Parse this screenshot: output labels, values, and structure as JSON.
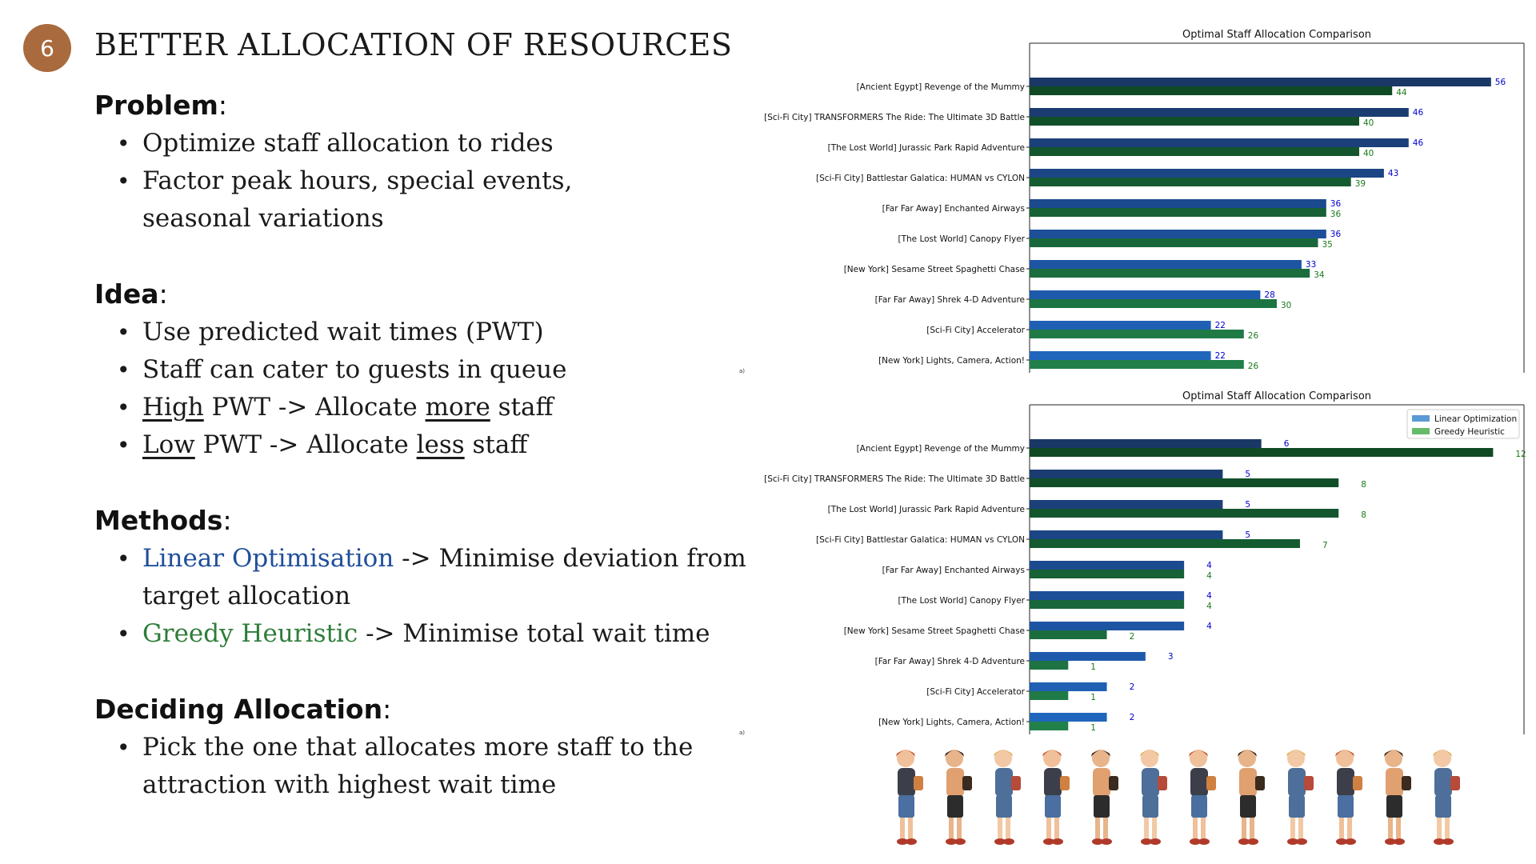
{
  "slide": {
    "number": "6",
    "title": "BETTER ALLOCATION OF RESOURCES"
  },
  "sections": {
    "problem": {
      "heading": "Problem",
      "colon": ":",
      "bullet1": "Optimize staff allocation to rides",
      "bullet2": "Factor peak hours, special events, seasonal variations"
    },
    "idea": {
      "heading": "Idea",
      "colon": ":",
      "bullet1": "Use predicted wait times (PWT)",
      "bullet2": "Staff can cater to guests in queue",
      "bullet3_a": "High",
      "bullet3_b": " PWT -> Allocate ",
      "bullet3_c": "more",
      "bullet3_d": " staff",
      "bullet4_a": "Low",
      "bullet4_b": " PWT -> Allocate ",
      "bullet4_c": "less",
      "bullet4_d": " staff"
    },
    "methods": {
      "heading": "Methods",
      "colon": ":",
      "bullet1_a": "Linear Optimisation",
      "bullet1_b": " -> Minimise deviation from target allocation",
      "bullet2_a": "Greedy Heuristic",
      "bullet2_b": " -> Minimise total wait time"
    },
    "deciding": {
      "heading": "Deciding Allocation",
      "colon": ":",
      "bullet1": "Pick the one that allocates more staff to the attraction with highest wait time"
    }
  },
  "colors": {
    "circle": "#a96a3e",
    "linear_text": "#1f4f9a",
    "greedy_text": "#2e7d3a",
    "linear_label": "#0000cc",
    "greedy_label": "#1a7a1a"
  },
  "chart_data": [
    {
      "type": "bar",
      "orientation": "horizontal",
      "title": "Optimal Staff Allocation Comparison",
      "categories": [
        "[Ancient Egypt] Revenge of the Mummy",
        "[Sci-Fi City] TRANSFORMERS The Ride: The Ultimate 3D Battle",
        "[The Lost World] Jurassic Park Rapid Adventure",
        "[Sci-Fi City] Battlestar Galatica: HUMAN vs CYLON",
        "[Far Far Away] Enchanted Airways",
        "[The Lost World] Canopy Flyer",
        "[New York] Sesame Street Spaghetti Chase",
        "[Far Far Away] Shrek 4-D Adventure",
        "[Sci-Fi City] Accelerator",
        "[New York] Lights, Camera, Action!"
      ],
      "series": [
        {
          "name": "Linear Optimization",
          "values": [
            56,
            46,
            46,
            43,
            36,
            36,
            33,
            28,
            22,
            22
          ]
        },
        {
          "name": "Greedy Heuristic",
          "values": [
            44,
            40,
            40,
            39,
            36,
            35,
            34,
            30,
            26,
            26
          ]
        }
      ],
      "xlim": [
        0,
        60
      ],
      "legend": "none"
    },
    {
      "type": "bar",
      "orientation": "horizontal",
      "title": "Optimal Staff Allocation Comparison",
      "categories": [
        "[Ancient Egypt] Revenge of the Mummy",
        "[Sci-Fi City] TRANSFORMERS The Ride: The Ultimate 3D Battle",
        "[The Lost World] Jurassic Park Rapid Adventure",
        "[Sci-Fi City] Battlestar Galatica: HUMAN vs CYLON",
        "[Far Far Away] Enchanted Airways",
        "[The Lost World] Canopy Flyer",
        "[New York] Sesame Street Spaghetti Chase",
        "[Far Far Away] Shrek 4-D Adventure",
        "[Sci-Fi City] Accelerator",
        "[New York] Lights, Camera, Action!"
      ],
      "series": [
        {
          "name": "Linear Optimization",
          "values": [
            6,
            5,
            5,
            5,
            4,
            4,
            4,
            3,
            2,
            2
          ]
        },
        {
          "name": "Greedy Heuristic",
          "values": [
            12,
            8,
            8,
            7,
            4,
            4,
            2,
            1,
            1,
            1
          ]
        }
      ],
      "xlim": [
        0,
        12.8
      ],
      "legend": "top-right"
    }
  ]
}
